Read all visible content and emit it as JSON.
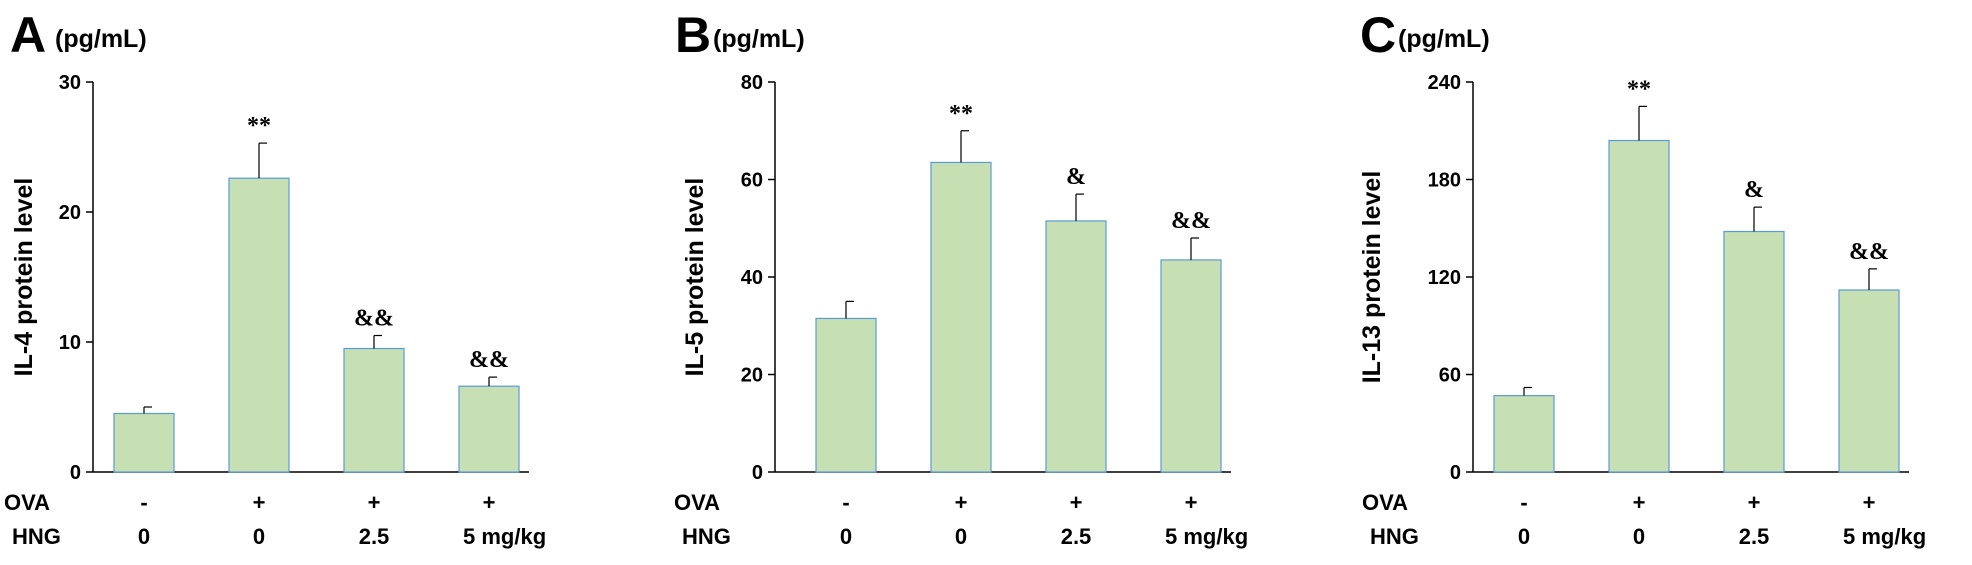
{
  "colors": {
    "bar_fill": "#c6e0b4",
    "bar_stroke": "#5b9bd5",
    "axis": "#000000",
    "text": "#000000"
  },
  "row_labels": {
    "ova": "OVA",
    "hng": "HNG"
  },
  "chart_data": [
    {
      "type": "bar",
      "panel_letter": "A",
      "unit": "(pg/mL)",
      "ylabel": "IL-4 protein level",
      "ylim": [
        0,
        30
      ],
      "yticks": [
        "0",
        "10",
        "20",
        "30"
      ],
      "categories": [
        "1",
        "2",
        "3",
        "4"
      ],
      "values": [
        4.5,
        22.6,
        9.5,
        6.6
      ],
      "errors": [
        0.5,
        2.7,
        1.0,
        0.7
      ],
      "annotations": [
        "",
        "**",
        "&&",
        "&&"
      ],
      "ova": [
        "-",
        "+",
        "+",
        "+"
      ],
      "hng": [
        "0",
        "0",
        "2.5",
        "5 mg/kg"
      ]
    },
    {
      "type": "bar",
      "panel_letter": "B",
      "unit": "(pg/mL)",
      "ylabel": "IL-5 protein level",
      "ylim": [
        0,
        80
      ],
      "yticks": [
        "0",
        "20",
        "40",
        "60",
        "80"
      ],
      "categories": [
        "1",
        "2",
        "3",
        "4"
      ],
      "values": [
        31.5,
        63.5,
        51.5,
        43.5
      ],
      "errors": [
        3.5,
        6.5,
        5.5,
        4.5
      ],
      "annotations": [
        "",
        "**",
        "&",
        "&&"
      ],
      "ova": [
        "-",
        "+",
        "+",
        "+"
      ],
      "hng": [
        "0",
        "0",
        "2.5",
        "5 mg/kg"
      ]
    },
    {
      "type": "bar",
      "panel_letter": "C",
      "unit": "(pg/mL)",
      "ylabel": "IL-13  protein level",
      "ylim": [
        0,
        240
      ],
      "yticks": [
        "0",
        "60",
        "120",
        "180",
        "240"
      ],
      "categories": [
        "1",
        "2",
        "3",
        "4"
      ],
      "values": [
        47,
        204,
        148,
        112
      ],
      "errors": [
        5,
        21,
        15,
        13
      ],
      "annotations": [
        "",
        "**",
        "&",
        "&&"
      ],
      "ova": [
        "-",
        "+",
        "+",
        "+"
      ],
      "hng": [
        "0",
        "0",
        "2.5",
        "5 mg/kg"
      ]
    }
  ]
}
